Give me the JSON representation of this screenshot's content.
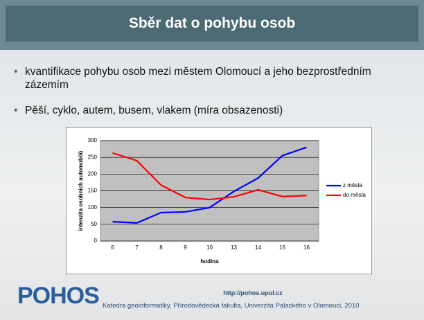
{
  "header": {
    "title": "Sběr dat o pohybu osob"
  },
  "bullets": [
    "kvantifikace pohybu osob mezi městem Olomoucí a jeho bezprostředním zázemím",
    "Pěší, cyklo, autem, busem, vlakem (míra obsazenosti)"
  ],
  "chart_data": {
    "type": "line",
    "x_label": "hodina",
    "y_label": "intenzita osobních automobilů",
    "categories": [
      "6",
      "7",
      "8",
      "9",
      "10",
      "13",
      "14",
      "15",
      "16"
    ],
    "series": [
      {
        "name": "z města",
        "color": "#0000ff",
        "values": [
          58,
          54,
          85,
          87,
          100,
          148,
          188,
          255,
          280
        ]
      },
      {
        "name": "do města",
        "color": "#ff0000",
        "values": [
          263,
          240,
          167,
          130,
          124,
          132,
          153,
          133,
          136
        ]
      }
    ],
    "ylim": [
      0,
      300
    ],
    "yticks": [
      0,
      50,
      100,
      150,
      200,
      250,
      300
    ],
    "grid": true,
    "legend": "right"
  },
  "footer": {
    "logo": "POHOS",
    "url": "http://pohos.upol.cz",
    "affiliation": "Katedra geoinformatiky, Přírodovědecká fakulta, Univerzita Palackého v Olomouci, 2010"
  }
}
